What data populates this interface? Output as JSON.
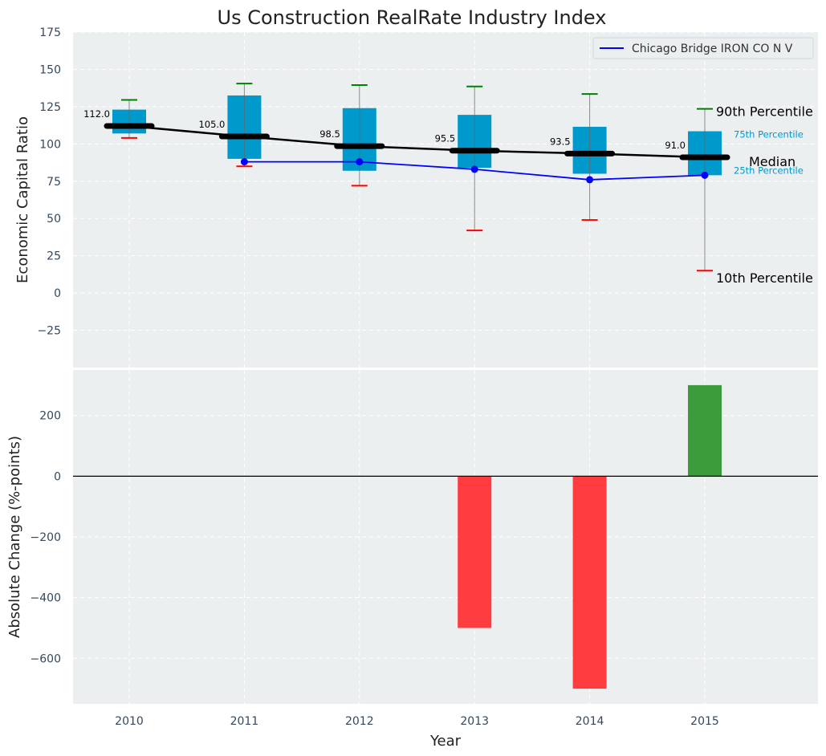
{
  "chart_data": [
    {
      "panel": "top",
      "type": "box",
      "title": "Us Construction RealRate Industry Index",
      "xlabel": "",
      "ylabel": "Economic Capital Ratio",
      "ylim": [
        -50,
        175
      ],
      "yticks": [
        -25,
        0,
        25,
        50,
        75,
        100,
        125,
        150,
        175
      ],
      "ytick_labels": [
        "−25",
        "0",
        "25",
        "50",
        "75",
        "100",
        "125",
        "150",
        "175"
      ],
      "grid": true,
      "categories": [
        "2010",
        "2011",
        "2012",
        "2013",
        "2014",
        "2015"
      ],
      "percentiles": {
        "p10": [
          104,
          85,
          72,
          42,
          49,
          15
        ],
        "p25": [
          107,
          90,
          82,
          84,
          80,
          79
        ],
        "median": [
          112.0,
          105.0,
          98.5,
          95.5,
          93.5,
          91.0
        ],
        "p75": [
          123,
          132.5,
          124,
          119.5,
          111.5,
          108.5
        ],
        "p90": [
          129.5,
          140.5,
          139.5,
          138.5,
          133.5,
          123.5
        ]
      },
      "median_labels": [
        "112.0",
        "105.0",
        "98.5",
        "95.5",
        "93.5",
        "91.0"
      ],
      "series": [
        {
          "name": "Chicago Bridge IRON CO N V",
          "x": [
            "2011",
            "2012",
            "2013",
            "2014",
            "2015"
          ],
          "values": [
            88,
            88,
            83,
            76,
            79
          ],
          "color": "#0000ff"
        }
      ],
      "legend": {
        "placement": "top-right",
        "entries": [
          "Chicago Bridge IRON CO N V"
        ]
      },
      "annotations": {
        "p90": "90th Percentile",
        "p75": "75th Percentile",
        "median": "Median",
        "p25": "25th Percentile",
        "p10": "10th Percentile"
      },
      "colors": {
        "box": "#0099cc",
        "median": "#000000",
        "whisker_top": "#008000",
        "whisker_bottom": "#ff0000",
        "company": "#0000ff",
        "background": "#ebeff0"
      }
    },
    {
      "panel": "bottom",
      "type": "bar",
      "xlabel": "Year",
      "ylabel": "Absolute Change (%-points)",
      "ylim": [
        -750,
        350
      ],
      "yticks": [
        -600,
        -400,
        -200,
        0,
        200
      ],
      "ytick_labels": [
        "−600",
        "−400",
        "−200",
        "0",
        "200"
      ],
      "grid": true,
      "categories": [
        "2010",
        "2011",
        "2012",
        "2013",
        "2014",
        "2015"
      ],
      "values": [
        0,
        0,
        0,
        -500,
        -700,
        300
      ],
      "colors": {
        "positive": "#3c9c3c",
        "negative": "#ff3c3f"
      }
    }
  ]
}
